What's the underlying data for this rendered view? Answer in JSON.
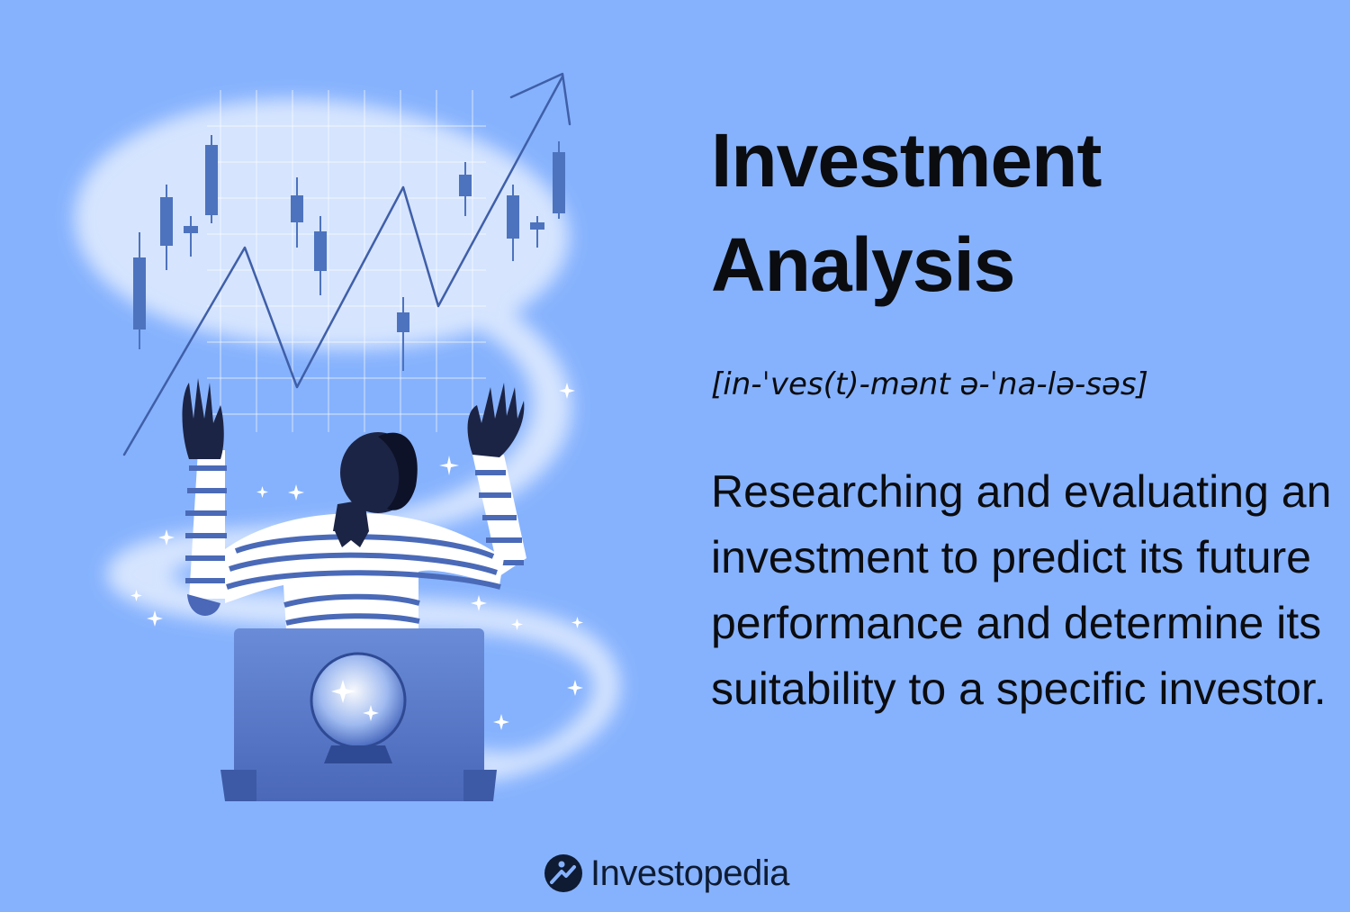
{
  "title": "Investment Analysis",
  "pronunciation": "[in-ˈves(t)-mənt ə-ˈna-lə-səs]",
  "definition": "Researching and evaluating an investment to predict its future performance and determine its suitability to a specific investor.",
  "brand": {
    "name": "Investopedia",
    "icon": "investopedia-logo-icon"
  },
  "illustration": {
    "subject": "person-with-raised-hands-crystal-ball-laptop",
    "icons": [
      "candlestick-icon",
      "trend-arrow-icon",
      "crystal-ball-icon",
      "laptop-icon",
      "sparkle-icon"
    ]
  },
  "colors": {
    "background": "#86b2fd",
    "text": "#0b0c10",
    "candle": "#4d73be",
    "swirl": "#dbe8ff",
    "laptop": "#5574c4",
    "skin": "#1c2445"
  }
}
